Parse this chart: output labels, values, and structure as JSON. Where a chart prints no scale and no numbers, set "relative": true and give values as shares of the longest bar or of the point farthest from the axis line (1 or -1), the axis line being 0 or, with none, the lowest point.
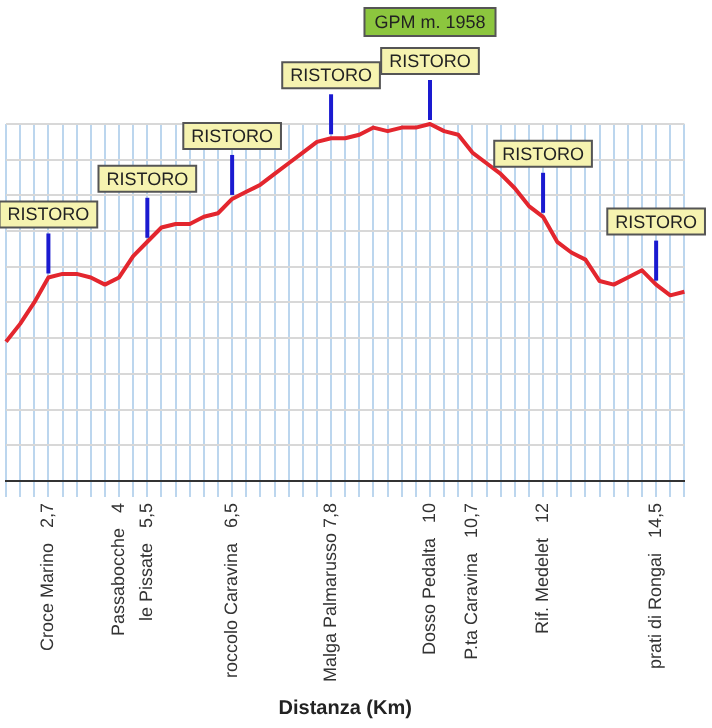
{
  "chart_data": {
    "type": "line",
    "relative": true,
    "xlabel": "Distanza (Km)",
    "categories": [
      null,
      null,
      null,
      "Croce Marino   2,7",
      null,
      null,
      null,
      null,
      "Passabocche   4",
      null,
      "le Pissate   5,5",
      null,
      null,
      null,
      null,
      null,
      "roccolo Caravina   6,5",
      null,
      null,
      null,
      null,
      null,
      null,
      "Malga Palmarusso 7,8",
      null,
      null,
      null,
      null,
      null,
      null,
      "Dosso Pedalta   10",
      null,
      null,
      "P.ta Caravina   10,7",
      null,
      null,
      null,
      null,
      "Rif. Medelet   12",
      null,
      null,
      null,
      null,
      null,
      null,
      null,
      "prati di Rongai   14,5",
      null,
      null
    ],
    "series": [
      {
        "color": "#e3262e",
        "values": [
          0.39,
          0.44,
          0.5,
          0.57,
          0.58,
          0.58,
          0.57,
          0.55,
          0.57,
          0.63,
          0.67,
          0.71,
          0.72,
          0.72,
          0.74,
          0.75,
          0.79,
          0.81,
          0.83,
          0.86,
          0.89,
          0.92,
          0.95,
          0.96,
          0.96,
          0.97,
          0.99,
          0.98,
          0.99,
          0.99,
          1,
          0.98,
          0.97,
          0.92,
          0.89,
          0.86,
          0.82,
          0.77,
          0.74,
          0.67,
          0.64,
          0.62,
          0.56,
          0.55,
          0.57,
          0.59,
          0.55,
          0.52,
          0.53
        ]
      }
    ],
    "annotations": [
      {
        "text": "RISTORO",
        "x": "Croce Marino   2,7",
        "y": 0.57
      },
      {
        "text": "RISTORO",
        "x": "le Pissate   5,5",
        "y": 0.67
      },
      {
        "text": "RISTORO",
        "x": "roccolo Caravina   6,5",
        "y": 0.79
      },
      {
        "text": "RISTORO",
        "x": "Malga Palmarusso 7,8",
        "y": 0.96
      },
      {
        "text": "RISTORO",
        "x": "Dosso Pedalta   10",
        "y": 1
      },
      "GPM m. 1958",
      {
        "text": "RISTORO",
        "x": "Rif. Medelet   12",
        "y": 0.74
      },
      {
        "text": "RISTORO",
        "x": "prati di Rongai   14,5",
        "y": 0.55
      }
    ],
    "grid": true,
    "legend": false,
    "marker": "none",
    "line_style": "solid"
  }
}
